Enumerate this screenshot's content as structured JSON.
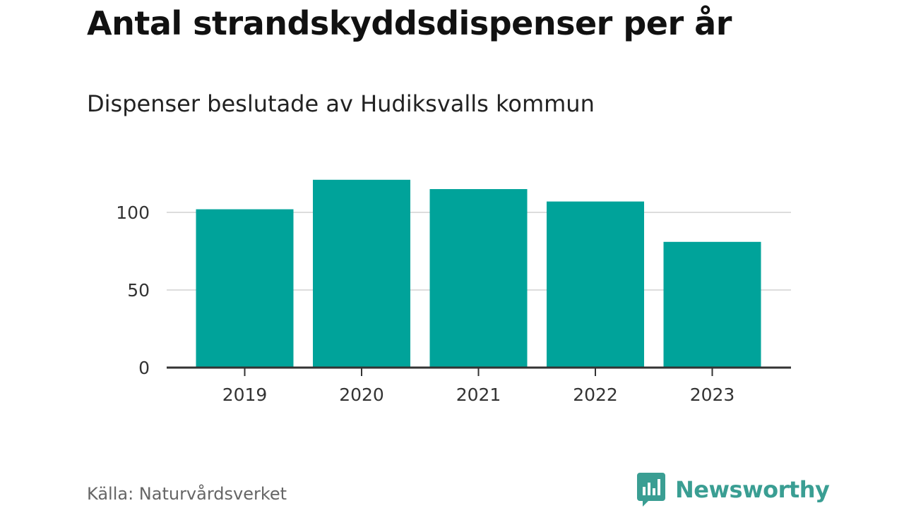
{
  "header": {
    "title": "Antal strandskyddsdispenser per år",
    "subtitle": "Dispenser beslutade av Hudiksvalls kommun"
  },
  "footer": {
    "source": "Källa: Naturvårdsverket",
    "brand_name": "Newsworthy"
  },
  "colors": {
    "bar": "#00a39a",
    "grid": "#dddddd",
    "axis": "#333333",
    "brand": "#3a9e93"
  },
  "chart_data": {
    "type": "bar",
    "title": "Antal strandskyddsdispenser per år",
    "subtitle": "Dispenser beslutade av Hudiksvalls kommun",
    "categories": [
      "2019",
      "2020",
      "2021",
      "2022",
      "2023"
    ],
    "values": [
      102,
      121,
      115,
      107,
      81
    ],
    "xlabel": "",
    "ylabel": "",
    "ylim": [
      0,
      130
    ],
    "yticks": [
      {
        "value": 0,
        "label": "0"
      },
      {
        "value": 50,
        "label": "50"
      },
      {
        "value": 100,
        "label": "100"
      }
    ],
    "grid": true,
    "legend": "none"
  }
}
